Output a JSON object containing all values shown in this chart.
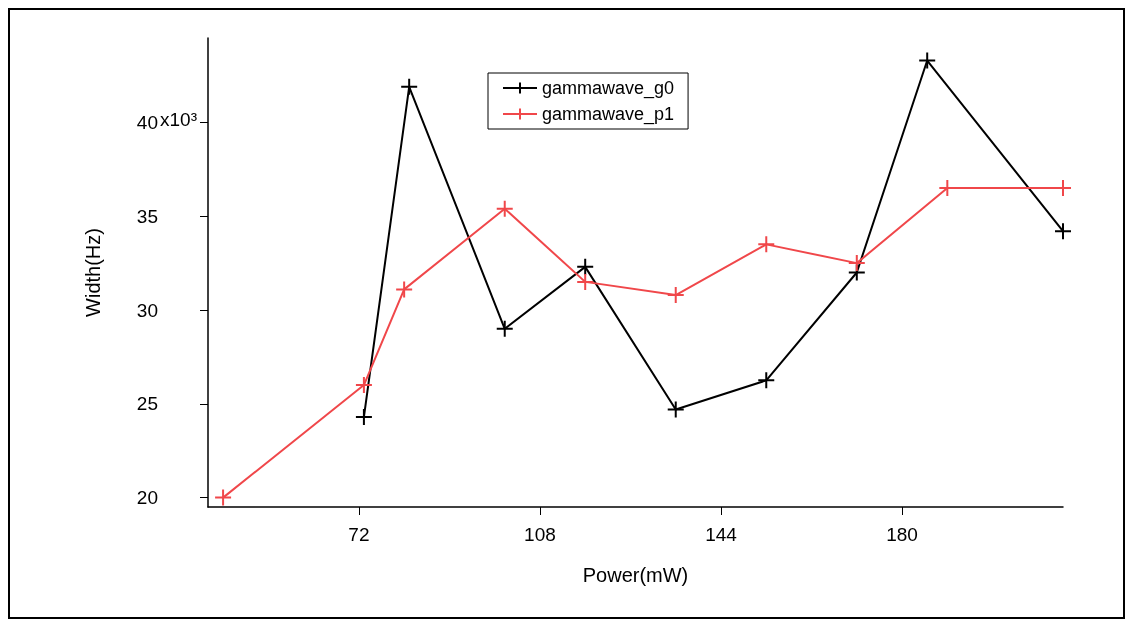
{
  "chart_data": {
    "type": "line",
    "xlabel": "Power(mW)",
    "ylabel": "Width(Hz)",
    "xlim": [
      42,
      212
    ],
    "xticks": [
      72,
      108,
      144,
      180
    ],
    "ylim": [
      19.5,
      44.5
    ],
    "yticks": [
      20,
      25,
      30,
      35,
      40
    ],
    "annotations": [
      "x10³"
    ],
    "series": [
      {
        "name": "gammawave_g0",
        "color": "#000000",
        "x": [
          73,
          82,
          101,
          117,
          135,
          153,
          171,
          185,
          212
        ],
        "values": [
          24.3,
          41.9,
          29.0,
          32.3,
          24.7,
          26.25,
          32.0,
          43.3,
          34.2
        ]
      },
      {
        "name": "gammawave_p1",
        "color": "#f0474a",
        "x": [
          45,
          73,
          81,
          101,
          117,
          135,
          153,
          171,
          189,
          212
        ],
        "values": [
          20,
          26.0,
          31.1,
          35.4,
          31.5,
          30.8,
          33.5,
          32.5,
          36.5,
          36.5
        ]
      }
    ],
    "marker": "cross",
    "legend": "top",
    "grid": false
  }
}
